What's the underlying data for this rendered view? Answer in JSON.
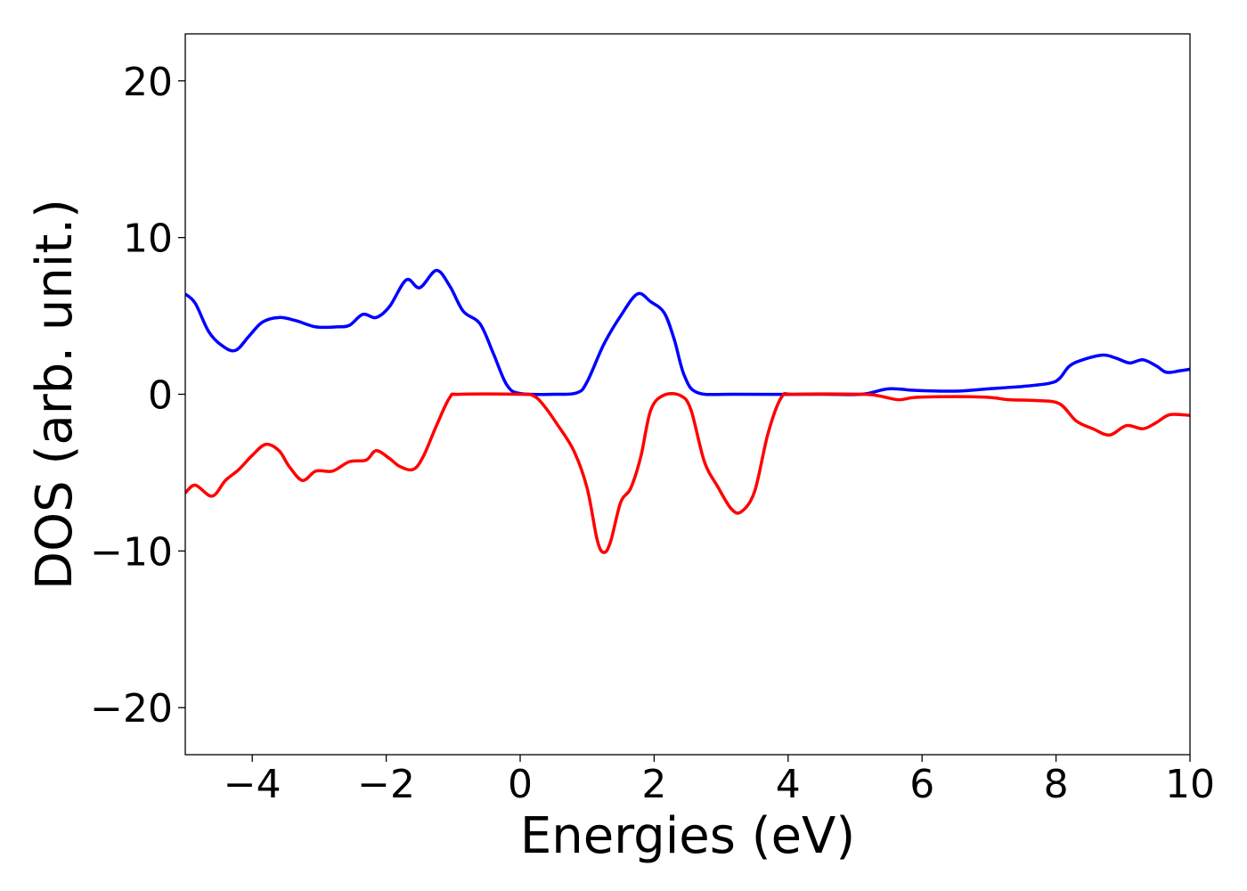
{
  "chart_data": {
    "type": "line",
    "title": "",
    "xlabel": "Energies (eV)",
    "ylabel": "DOS (arb. unit.)",
    "xlim": [
      -5,
      10
    ],
    "ylim": [
      -23,
      23
    ],
    "xticks": [
      -4,
      -2,
      0,
      2,
      4,
      6,
      8,
      10
    ],
    "xtick_labels": [
      "−4",
      "−2",
      "0",
      "2",
      "4",
      "6",
      "8",
      "10"
    ],
    "yticks": [
      -20,
      -10,
      0,
      10,
      20
    ],
    "ytick_labels": [
      "−20",
      "−10",
      "0",
      "10",
      "20"
    ],
    "grid": false,
    "legend": "none",
    "series": [
      {
        "color": "#0000ff",
        "points": [
          [
            -5.0,
            6.4
          ],
          [
            -4.85,
            5.8
          ],
          [
            -4.65,
            4.0
          ],
          [
            -4.45,
            3.1
          ],
          [
            -4.25,
            2.8
          ],
          [
            -4.05,
            3.7
          ],
          [
            -3.85,
            4.6
          ],
          [
            -3.6,
            4.9
          ],
          [
            -3.35,
            4.7
          ],
          [
            -3.05,
            4.3
          ],
          [
            -2.75,
            4.3
          ],
          [
            -2.55,
            4.4
          ],
          [
            -2.35,
            5.1
          ],
          [
            -2.15,
            4.9
          ],
          [
            -1.95,
            5.6
          ],
          [
            -1.7,
            7.3
          ],
          [
            -1.5,
            6.8
          ],
          [
            -1.25,
            7.9
          ],
          [
            -1.05,
            6.9
          ],
          [
            -0.85,
            5.3
          ],
          [
            -0.6,
            4.5
          ],
          [
            -0.4,
            2.6
          ],
          [
            -0.2,
            0.6
          ],
          [
            0.0,
            0.05
          ],
          [
            0.5,
            0.0
          ],
          [
            0.85,
            0.1
          ],
          [
            1.0,
            0.8
          ],
          [
            1.25,
            3.2
          ],
          [
            1.5,
            5.0
          ],
          [
            1.75,
            6.4
          ],
          [
            1.95,
            5.9
          ],
          [
            2.15,
            5.2
          ],
          [
            2.3,
            3.5
          ],
          [
            2.45,
            1.2
          ],
          [
            2.65,
            0.1
          ],
          [
            3.2,
            0.0
          ],
          [
            4.5,
            0.0
          ],
          [
            5.1,
            0.0
          ],
          [
            5.5,
            0.35
          ],
          [
            5.9,
            0.25
          ],
          [
            6.5,
            0.2
          ],
          [
            7.0,
            0.35
          ],
          [
            7.5,
            0.5
          ],
          [
            7.9,
            0.7
          ],
          [
            8.05,
            1.0
          ],
          [
            8.2,
            1.8
          ],
          [
            8.4,
            2.2
          ],
          [
            8.7,
            2.5
          ],
          [
            8.9,
            2.3
          ],
          [
            9.1,
            2.0
          ],
          [
            9.3,
            2.2
          ],
          [
            9.5,
            1.8
          ],
          [
            9.65,
            1.4
          ],
          [
            9.85,
            1.5
          ],
          [
            10.0,
            1.6
          ]
        ]
      },
      {
        "color": "#ff0000",
        "points": [
          [
            -5.0,
            -6.3
          ],
          [
            -4.85,
            -5.8
          ],
          [
            -4.6,
            -6.5
          ],
          [
            -4.4,
            -5.5
          ],
          [
            -4.2,
            -4.8
          ],
          [
            -4.0,
            -3.9
          ],
          [
            -3.8,
            -3.2
          ],
          [
            -3.6,
            -3.6
          ],
          [
            -3.45,
            -4.6
          ],
          [
            -3.25,
            -5.5
          ],
          [
            -3.05,
            -4.9
          ],
          [
            -2.8,
            -4.9
          ],
          [
            -2.55,
            -4.3
          ],
          [
            -2.3,
            -4.2
          ],
          [
            -2.15,
            -3.6
          ],
          [
            -1.95,
            -4.1
          ],
          [
            -1.8,
            -4.6
          ],
          [
            -1.6,
            -4.8
          ],
          [
            -1.45,
            -4.0
          ],
          [
            -1.25,
            -2.0
          ],
          [
            -1.05,
            -0.2
          ],
          [
            -0.9,
            0.0
          ],
          [
            0.0,
            0.0
          ],
          [
            0.2,
            -0.1
          ],
          [
            0.35,
            -0.7
          ],
          [
            0.55,
            -1.9
          ],
          [
            0.8,
            -3.6
          ],
          [
            1.0,
            -6.0
          ],
          [
            1.15,
            -9.3
          ],
          [
            1.25,
            -10.1
          ],
          [
            1.35,
            -9.4
          ],
          [
            1.5,
            -6.9
          ],
          [
            1.65,
            -6.0
          ],
          [
            1.8,
            -4.0
          ],
          [
            1.95,
            -1.0
          ],
          [
            2.15,
            -0.05
          ],
          [
            2.4,
            -0.1
          ],
          [
            2.55,
            -1.0
          ],
          [
            2.75,
            -4.3
          ],
          [
            2.95,
            -5.9
          ],
          [
            3.15,
            -7.3
          ],
          [
            3.3,
            -7.5
          ],
          [
            3.5,
            -6.2
          ],
          [
            3.7,
            -2.5
          ],
          [
            3.9,
            -0.2
          ],
          [
            4.1,
            0.0
          ],
          [
            5.1,
            0.0
          ],
          [
            5.35,
            -0.1
          ],
          [
            5.65,
            -0.35
          ],
          [
            5.9,
            -0.2
          ],
          [
            6.5,
            -0.15
          ],
          [
            7.0,
            -0.2
          ],
          [
            7.3,
            -0.35
          ],
          [
            7.7,
            -0.4
          ],
          [
            8.05,
            -0.6
          ],
          [
            8.3,
            -1.7
          ],
          [
            8.55,
            -2.2
          ],
          [
            8.8,
            -2.6
          ],
          [
            9.05,
            -2.0
          ],
          [
            9.3,
            -2.2
          ],
          [
            9.5,
            -1.8
          ],
          [
            9.7,
            -1.3
          ],
          [
            10.0,
            -1.35
          ]
        ]
      }
    ]
  }
}
